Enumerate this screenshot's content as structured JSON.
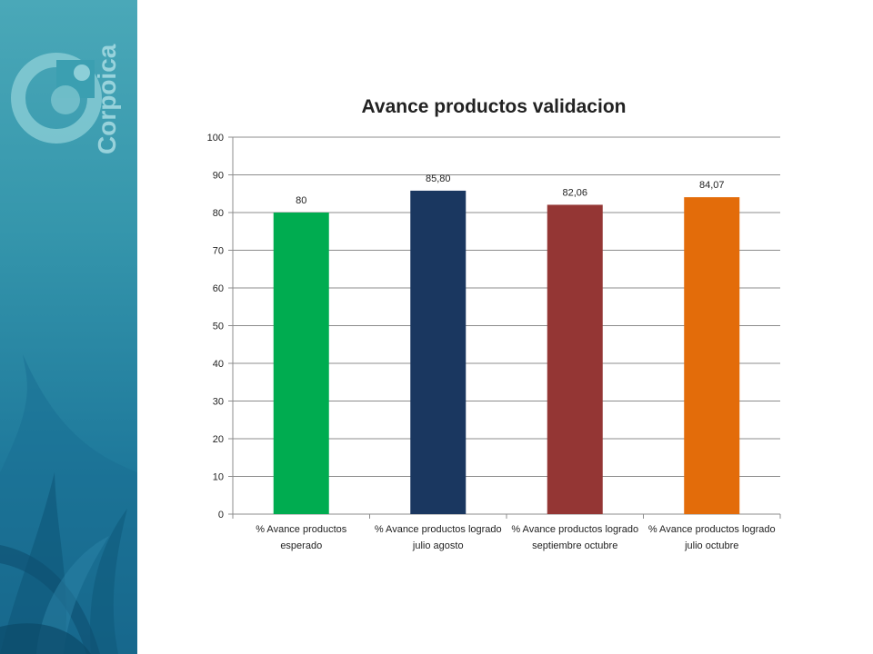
{
  "brand": {
    "logo_text": "Corpoica"
  },
  "chart_data": {
    "type": "bar",
    "title": "Avance productos validacion",
    "categories": [
      "% Avance productos esperado",
      "% Avance productos logrado julio agosto",
      "% Avance productos logrado septiembre octubre",
      "% Avance productos logrado julio octubre"
    ],
    "values": [
      80,
      85.8,
      82.06,
      84.07
    ],
    "data_labels": [
      "80",
      "85,80",
      "82,06",
      "84,07"
    ],
    "colors": [
      "#00ac50",
      "#1a3760",
      "#943634",
      "#e36c0a"
    ],
    "ylim": [
      0,
      100
    ],
    "yticks": [
      "0",
      "10",
      "20",
      "30",
      "40",
      "50",
      "60",
      "70",
      "80",
      "90",
      "100"
    ],
    "grid": true,
    "legend": "none"
  }
}
